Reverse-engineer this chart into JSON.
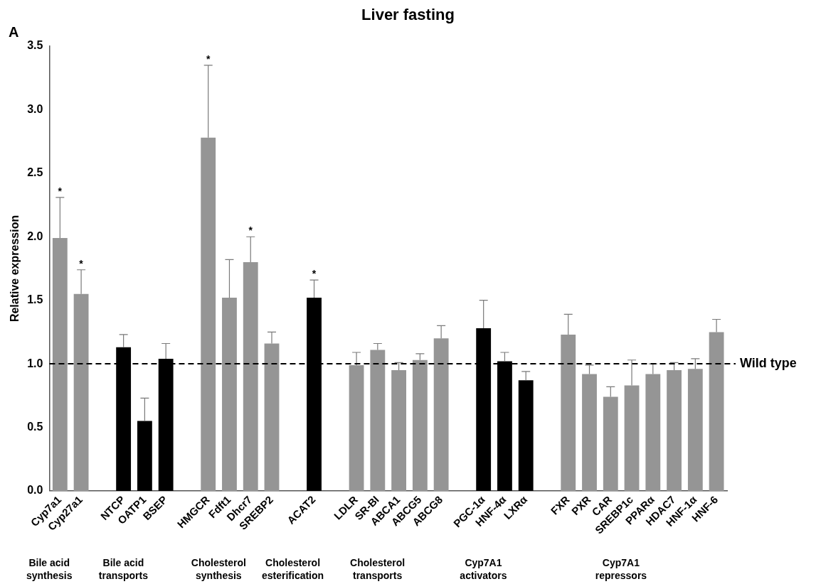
{
  "chart_data": {
    "type": "bar",
    "title": "Liver fasting",
    "ylabel": "Relative expression",
    "categories": [
      "Cyp7a1",
      "Cyp27a1",
      null,
      "NTCP",
      "OATP1",
      "BSEP",
      null,
      "HMGCR",
      "Fdft1",
      "Dhcr7",
      "SREBP2",
      null,
      "ACAT2",
      null,
      "LDLR",
      "SR-BI",
      "ABCA1",
      "ABCG5",
      "ABCG8",
      null,
      "PGC-1α",
      "HNF-4α",
      "LXRα",
      null,
      "FXR",
      "PXR",
      "CAR",
      "SREBP1c",
      "PPARα",
      "HDAC7",
      "HNF-1α",
      "HNF-6"
    ],
    "values": [
      1.99,
      1.55,
      null,
      1.13,
      0.55,
      1.04,
      null,
      2.78,
      1.52,
      1.8,
      1.16,
      null,
      1.52,
      null,
      0.99,
      1.11,
      0.95,
      1.03,
      1.2,
      null,
      1.28,
      1.02,
      0.87,
      null,
      1.23,
      0.92,
      0.74,
      0.83,
      0.92,
      0.95,
      0.96,
      1.25
    ],
    "errors": [
      [
        1.99,
        2.31
      ],
      [
        1.55,
        1.74
      ],
      null,
      [
        1.13,
        1.23
      ],
      [
        0.55,
        0.73
      ],
      [
        1.04,
        1.16
      ],
      null,
      [
        2.78,
        3.35
      ],
      [
        1.52,
        1.82
      ],
      [
        1.8,
        2.0
      ],
      [
        1.16,
        1.25
      ],
      null,
      [
        1.52,
        1.66
      ],
      null,
      [
        0.99,
        1.09
      ],
      [
        1.11,
        1.16
      ],
      [
        0.95,
        1.01
      ],
      [
        1.03,
        1.08
      ],
      [
        1.2,
        1.3
      ],
      null,
      [
        1.28,
        1.5
      ],
      [
        1.02,
        1.09
      ],
      [
        0.87,
        0.94
      ],
      null,
      [
        1.23,
        1.39
      ],
      [
        0.92,
        0.99
      ],
      [
        0.74,
        0.82
      ],
      [
        0.83,
        1.03
      ],
      [
        0.92,
        1.0
      ],
      [
        0.95,
        1.01
      ],
      [
        0.96,
        1.04
      ],
      [
        1.25,
        1.35
      ]
    ],
    "colors": [
      "#959595",
      "#959595",
      null,
      "#000000",
      "#000000",
      "#000000",
      null,
      "#959595",
      "#959595",
      "#959595",
      "#959595",
      null,
      "#000000",
      null,
      "#959595",
      "#959595",
      "#959595",
      "#959595",
      "#959595",
      null,
      "#000000",
      "#000000",
      "#000000",
      null,
      "#959595",
      "#959595",
      "#959595",
      "#959595",
      "#959595",
      "#959595",
      "#959595",
      "#959595"
    ],
    "ylim": [
      0,
      3.5
    ],
    "yticks": [
      {
        "value": 0,
        "label": "0.0"
      },
      0.5,
      {
        "value": 1,
        "label": "1.0"
      },
      1.5,
      {
        "value": 2,
        "label": "2.0"
      },
      2.5,
      {
        "value": 3,
        "label": "3.0"
      },
      3.5
    ],
    "grid": false,
    "legend": false,
    "ref_lines": [
      {
        "axis": "y",
        "value": 1,
        "label": "Wild type",
        "color": "#000000",
        "line_style": "dashed"
      }
    ],
    "annotations": [
      "A",
      {
        "text": "*",
        "x": "Cyp7a1",
        "y": 2.31
      },
      {
        "text": "*",
        "x": "Cyp27a1",
        "y": 1.74
      },
      {
        "text": "*",
        "x": "HMGCR",
        "y": 3.35
      },
      {
        "text": "*",
        "x": "Dhcr7",
        "y": 2.0
      },
      {
        "text": "*",
        "x": "ACAT2",
        "y": 1.66
      },
      "Bile acid\nsynthesis",
      "Bile acid\ntransports",
      "Cholesterol\nsynthesis",
      "Cholesterol\nesterification",
      "Cholesterol\ntransports",
      "Cyp7A1\nactivators",
      "Cyp7A1\nrepressors"
    ]
  }
}
